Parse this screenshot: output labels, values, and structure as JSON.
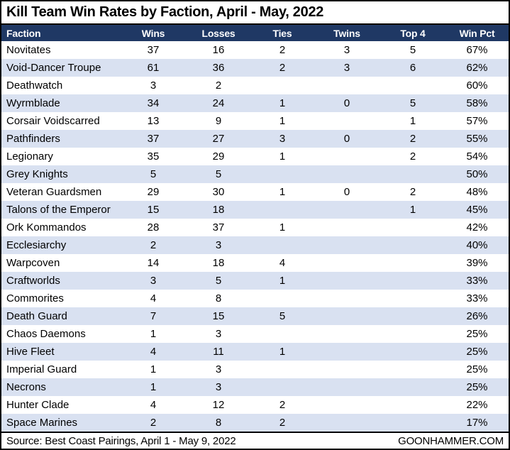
{
  "title": "Kill Team Win Rates by Faction, April - May, 2022",
  "footer": {
    "source": "Source: Best Coast Pairings, April 1 - May 9, 2022",
    "site": "GOONHAMMER.COM"
  },
  "colors": {
    "header_bg": "#1f3864",
    "header_text": "#ffffff",
    "row_alt_bg": "#d9e1f1",
    "row_bg": "#ffffff",
    "border": "#000000",
    "body_text": "#000000"
  },
  "chart_data": {
    "type": "table",
    "title": "Kill Team Win Rates by Faction, April - May, 2022",
    "columns": [
      "Faction",
      "Wins",
      "Losses",
      "Ties",
      "Twins",
      "Top 4",
      "Win Pct"
    ],
    "rows": [
      [
        "Novitates",
        "37",
        "16",
        "2",
        "3",
        "5",
        "67%"
      ],
      [
        "Void-Dancer Troupe",
        "61",
        "36",
        "2",
        "3",
        "6",
        "62%"
      ],
      [
        "Deathwatch",
        "3",
        "2",
        "",
        "",
        "",
        "60%"
      ],
      [
        "Wyrmblade",
        "34",
        "24",
        "1",
        "0",
        "5",
        "58%"
      ],
      [
        "Corsair Voidscarred",
        "13",
        "9",
        "1",
        "",
        "1",
        "57%"
      ],
      [
        "Pathfinders",
        "37",
        "27",
        "3",
        "0",
        "2",
        "55%"
      ],
      [
        "Legionary",
        "35",
        "29",
        "1",
        "",
        "2",
        "54%"
      ],
      [
        "Grey Knights",
        "5",
        "5",
        "",
        "",
        "",
        "50%"
      ],
      [
        "Veteran Guardsmen",
        "29",
        "30",
        "1",
        "0",
        "2",
        "48%"
      ],
      [
        "Talons of the Emperor",
        "15",
        "18",
        "",
        "",
        "1",
        "45%"
      ],
      [
        "Ork Kommandos",
        "28",
        "37",
        "1",
        "",
        "",
        "42%"
      ],
      [
        "Ecclesiarchy",
        "2",
        "3",
        "",
        "",
        "",
        "40%"
      ],
      [
        "Warpcoven",
        "14",
        "18",
        "4",
        "",
        "",
        "39%"
      ],
      [
        "Craftworlds",
        "3",
        "5",
        "1",
        "",
        "",
        "33%"
      ],
      [
        "Commorites",
        "4",
        "8",
        "",
        "",
        "",
        "33%"
      ],
      [
        "Death Guard",
        "7",
        "15",
        "5",
        "",
        "",
        "26%"
      ],
      [
        "Chaos Daemons",
        "1",
        "3",
        "",
        "",
        "",
        "25%"
      ],
      [
        "Hive Fleet",
        "4",
        "11",
        "1",
        "",
        "",
        "25%"
      ],
      [
        "Imperial Guard",
        "1",
        "3",
        "",
        "",
        "",
        "25%"
      ],
      [
        "Necrons",
        "1",
        "3",
        "",
        "",
        "",
        "25%"
      ],
      [
        "Hunter Clade",
        "4",
        "12",
        "2",
        "",
        "",
        "22%"
      ],
      [
        "Space Marines",
        "2",
        "8",
        "2",
        "",
        "",
        "17%"
      ]
    ],
    "layout_hints": {
      "first_column_align": "left",
      "numeric_columns_align": "center",
      "alternating_row_shading": true,
      "shading_starts_on_row": 2
    }
  }
}
